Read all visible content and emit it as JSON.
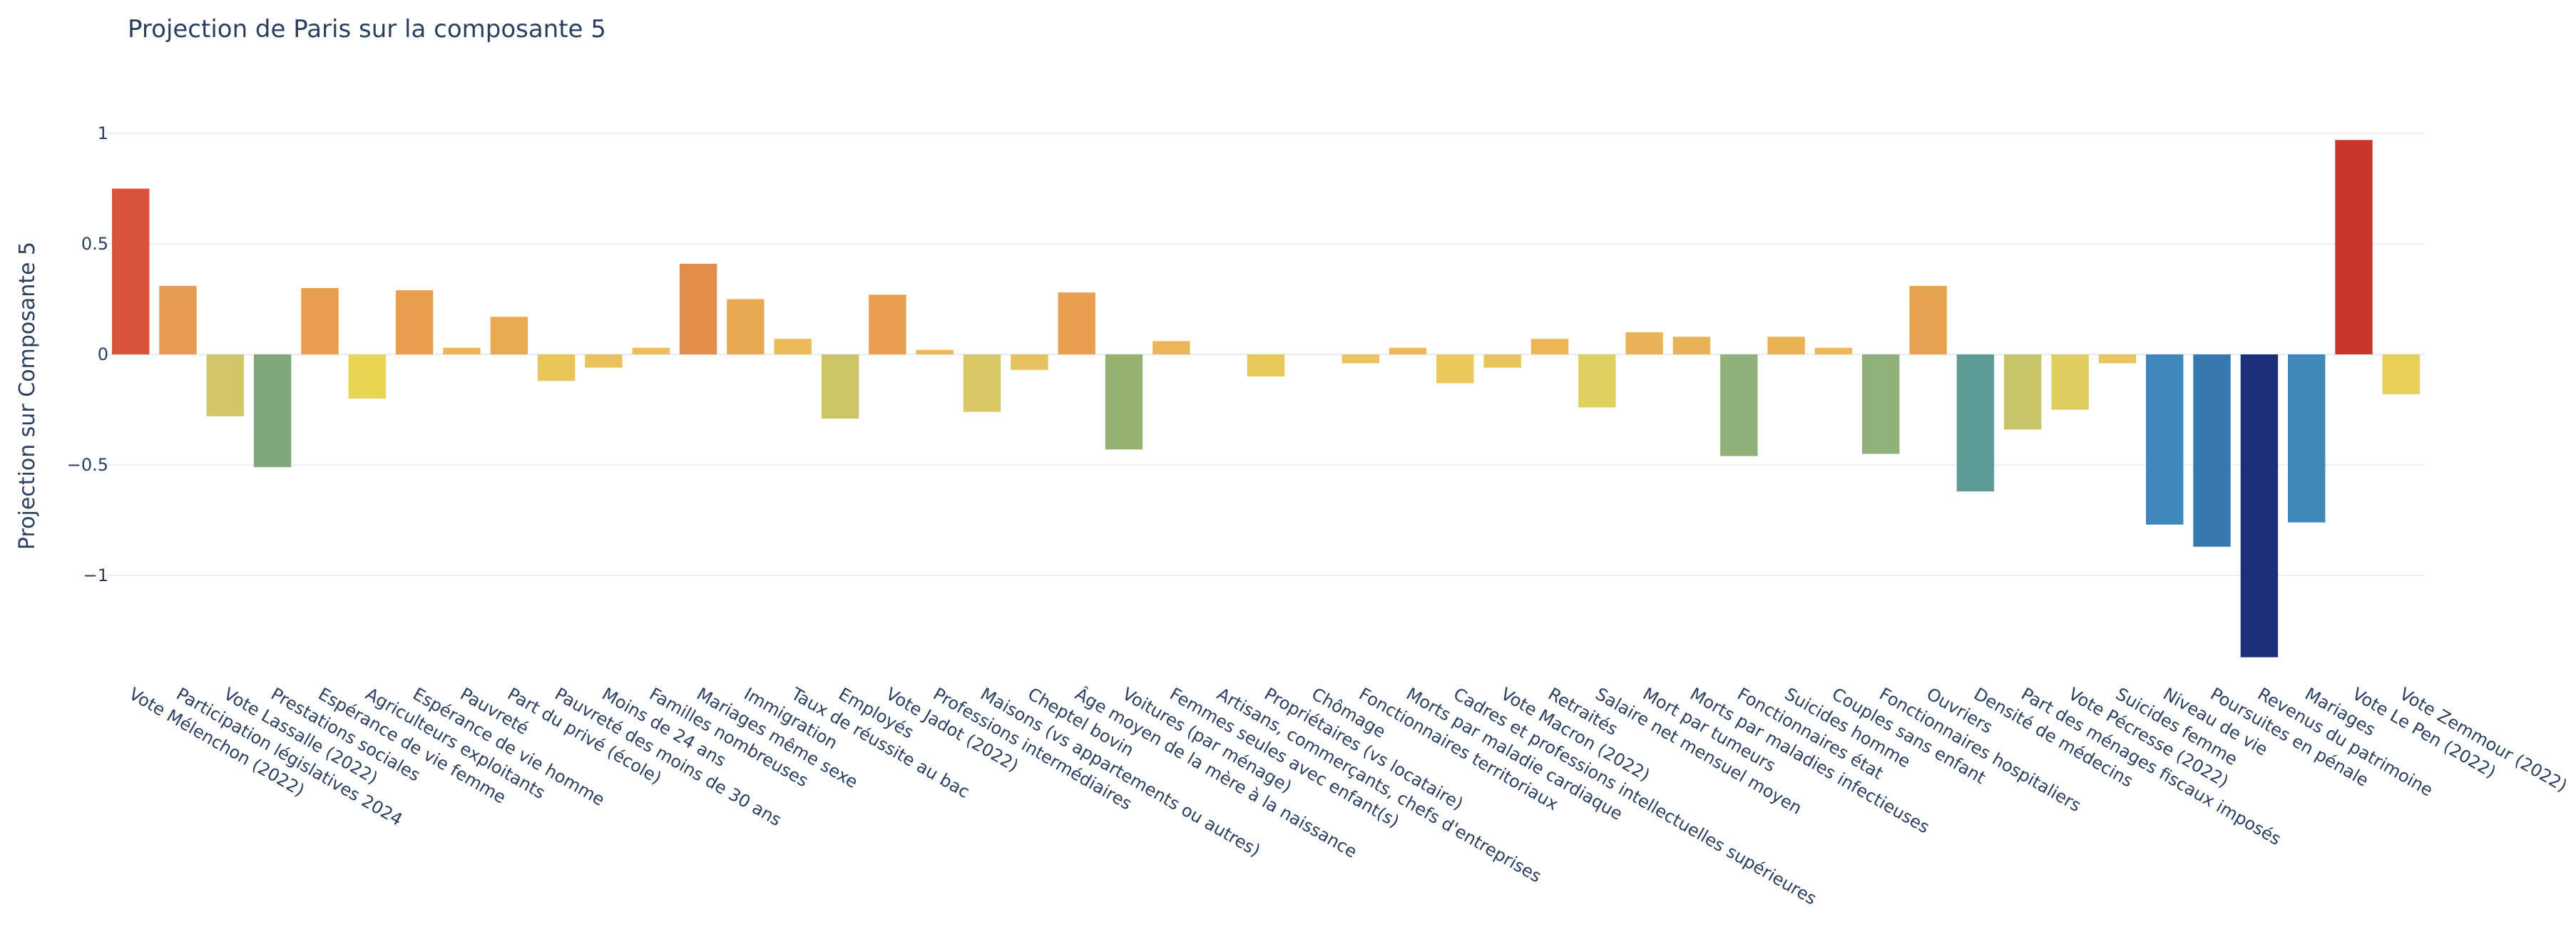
{
  "chart_data": {
    "type": "bar",
    "title": "Projection de Paris sur la composante 5",
    "xlabel": "",
    "ylabel": "Projection sur Composante 5",
    "ylim": [
      -1.44,
      1.14
    ],
    "yticks": [
      1,
      0.5,
      0,
      -0.5,
      -1
    ],
    "ytick_labels": [
      "1",
      "0.5",
      "0",
      "−0.5",
      "−1"
    ],
    "grid": true,
    "categories": [
      "Vote Mélenchon (2022)",
      "Participation législatives 2024",
      "Vote Lassalle (2022)",
      "Prestations sociales",
      "Espérance de vie femme",
      "Agriculteurs exploitants",
      "Espérance de vie homme",
      "Pauvreté",
      "Part du privé (école)",
      "Pauvreté des moins de 30 ans",
      "Moins de 24 ans",
      "Familles nombreuses",
      "Mariages même sexe",
      "Immigration",
      "Taux de réussite au bac",
      "Employés",
      "Vote Jadot (2022)",
      "Professions intermédiaires",
      "Maisons (vs appartements ou autres)",
      "Cheptel bovin",
      "Âge moyen de la mère à la naissance",
      "Voitures (par ménage)",
      "Femmes seules avec enfant(s)",
      "Artisans, commerçants, chefs d'entreprises",
      "Propriétaires (vs locataire)",
      "Chômage",
      "Fonctionnaires territoriaux",
      "Morts par maladie cardiaque",
      "Cadres et professions intellectuelles supérieures",
      "Vote Macron (2022)",
      "Retraités",
      "Salaire net mensuel moyen",
      "Mort par tumeurs",
      "Morts par maladies infectieuses",
      "Fonctionnaires état",
      "Suicides homme",
      "Couples sans enfant",
      "Fonctionnaires hospitaliers",
      "Ouvriers",
      "Densité de médecins",
      "Part des ménages fiscaux imposés",
      "Vote Pécresse (2022)",
      "Suicides femme",
      "Niveau de vie",
      "Poursuites en pénale",
      "Revenus du patrimoine",
      "Mariages",
      "Vote Le Pen (2022)",
      "Vote Zemmour (2022)"
    ],
    "values": [
      0.75,
      0.31,
      -0.28,
      -0.51,
      0.3,
      -0.2,
      0.29,
      0.03,
      0.17,
      -0.12,
      -0.06,
      0.03,
      0.41,
      0.25,
      0.07,
      -0.29,
      0.27,
      0.02,
      -0.26,
      -0.07,
      0.28,
      -0.43,
      0.06,
      0.0,
      -0.1,
      0.0,
      -0.04,
      0.03,
      -0.13,
      -0.06,
      0.07,
      -0.24,
      0.1,
      0.08,
      -0.46,
      0.08,
      0.03,
      -0.45,
      0.31,
      -0.62,
      -0.34,
      -0.25,
      -0.04,
      -0.77,
      -0.87,
      -1.37,
      -0.76,
      0.97,
      -0.18
    ],
    "colors": [
      "#d9533b",
      "#e69c50",
      "#d2c66a",
      "#7ea77b",
      "#e79f4e",
      "#ead552",
      "#e89e4f",
      "#eeb650",
      "#e9aa52",
      "#e8c65a",
      "#e9c25a",
      "#efbd55",
      "#e38d4b",
      "#e9a952",
      "#ecbb56",
      "#ccc565",
      "#e8a04e",
      "#eeb550",
      "#d9c965",
      "#e6c25a",
      "#e8a04e",
      "#96b272",
      "#eab657",
      "#eed25a",
      "#e7c85a",
      "#e8d15e",
      "#ebc45c",
      "#eab957",
      "#e9c95a",
      "#e6c55c",
      "#eeb553",
      "#dfd060",
      "#eab35a",
      "#ebb255",
      "#90b07a",
      "#ebb253",
      "#eab856",
      "#90b17a",
      "#e7a34f",
      "#5d9b96",
      "#c8c468",
      "#e0cd5f",
      "#e8c65c",
      "#3f89ba",
      "#3779ad",
      "#1c2f78",
      "#3f88b8",
      "#c9372c",
      "#e9cf56"
    ]
  }
}
